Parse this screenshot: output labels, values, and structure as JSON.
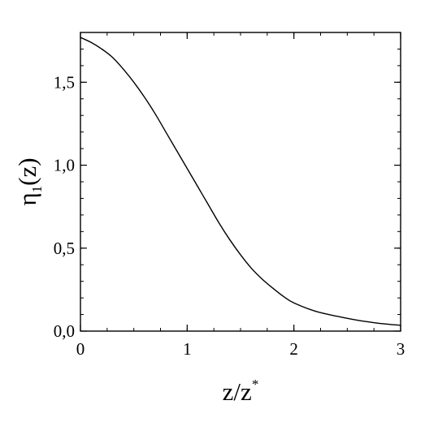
{
  "chart_data": {
    "type": "line",
    "title": "",
    "xlabel": {
      "base": "z/z",
      "sup": "*"
    },
    "ylabel": {
      "main": "η",
      "sub": "1",
      "tail": "(z)"
    },
    "xlim": [
      0,
      3
    ],
    "ylim": [
      0,
      1.8
    ],
    "x_ticks": [
      {
        "value": 0,
        "label": "0"
      },
      {
        "value": 1,
        "label": "1"
      },
      {
        "value": 2,
        "label": "2"
      },
      {
        "value": 3,
        "label": "3"
      }
    ],
    "y_ticks": [
      {
        "value": 0,
        "label": "0,0"
      },
      {
        "value": 0.5,
        "label": "0,5"
      },
      {
        "value": 1.0,
        "label": "1,0"
      },
      {
        "value": 1.5,
        "label": "1,5"
      }
    ],
    "x_minor_step": 0.25,
    "y_minor_step": 0.1,
    "grid": false,
    "legend": "none",
    "series": [
      {
        "color": "#000000",
        "x": [
          0,
          0.1,
          0.2,
          0.3,
          0.4,
          0.5,
          0.6,
          0.7,
          0.8,
          0.9,
          1.0,
          1.1,
          1.2,
          1.3,
          1.4,
          1.5,
          1.6,
          1.7,
          1.8,
          1.9,
          2.0,
          2.2,
          2.4,
          2.6,
          2.8,
          3.0
        ],
        "y": [
          1.77,
          1.74,
          1.7,
          1.65,
          1.58,
          1.5,
          1.41,
          1.31,
          1.2,
          1.09,
          0.98,
          0.87,
          0.76,
          0.65,
          0.55,
          0.46,
          0.38,
          0.315,
          0.26,
          0.21,
          0.17,
          0.12,
          0.09,
          0.065,
          0.047,
          0.035
        ]
      }
    ]
  }
}
